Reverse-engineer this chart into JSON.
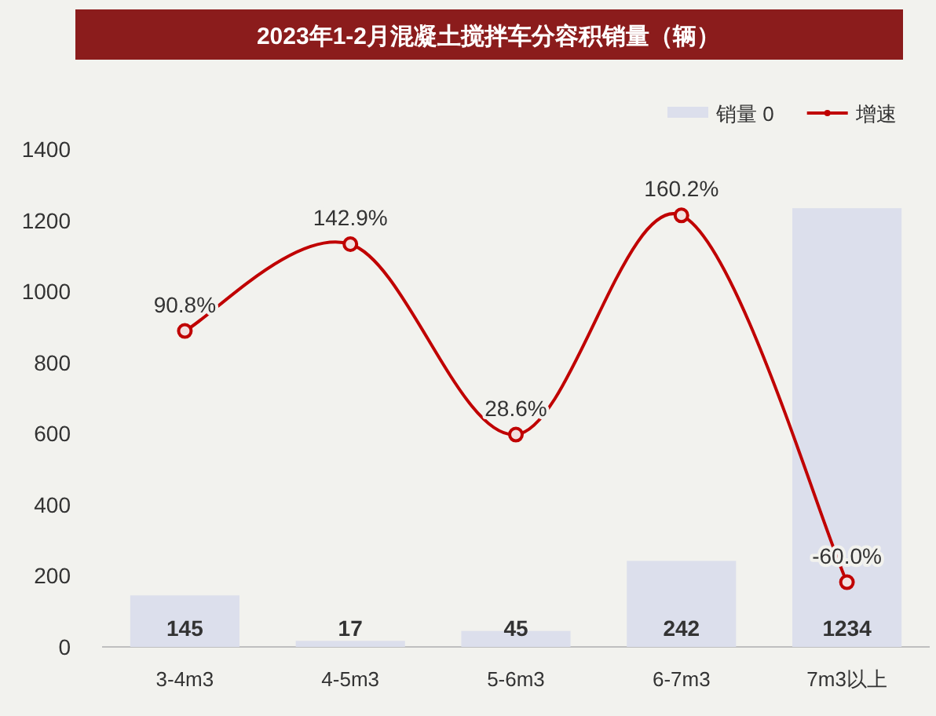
{
  "chart_data": {
    "type": "bar",
    "title": "2023年1-2月混凝土搅拌车分容积销量（辆）",
    "categories": [
      "3-4m3",
      "4-5m3",
      "5-6m3",
      "6-7m3",
      "7m3以上"
    ],
    "series": [
      {
        "name": "销量 0",
        "color": "#dcdfec",
        "values": [
          145,
          17,
          45,
          242,
          1234
        ],
        "value_labels": [
          "145",
          "17",
          "45",
          "242",
          "1234"
        ]
      },
      {
        "name": "增速",
        "type": "line",
        "axis": "y2",
        "color": "#c00000",
        "values": [
          90.8,
          142.9,
          28.6,
          160.2,
          -60.0
        ],
        "value_labels": [
          "90.8%",
          "142.9%",
          "28.6%",
          "160.2%",
          "-60.0%"
        ]
      }
    ],
    "ylim": [
      0,
      1400
    ],
    "yticks": [
      0,
      200,
      400,
      600,
      800,
      1000,
      1200,
      1400
    ],
    "marker": "circle",
    "legend": "top right",
    "grid": false
  }
}
